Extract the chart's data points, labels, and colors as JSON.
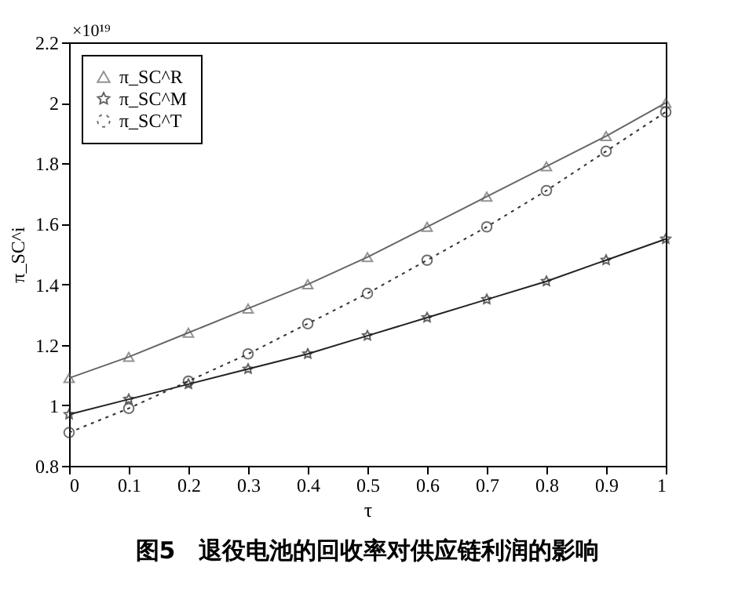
{
  "chart_data": {
    "type": "line",
    "title": "图5　退役电池的回收率对供应链利润的影响",
    "xlabel": "τ",
    "ylabel": "π_SC^i",
    "annotations": [
      "×10¹⁹"
    ],
    "x": [
      0,
      0.1,
      0.2,
      0.3,
      0.4,
      0.5,
      0.6,
      0.7,
      0.8,
      0.9,
      1
    ],
    "series": [
      {
        "name": "π_SC^R",
        "color": "#666666",
        "marker": "triangle",
        "line_style": "solid",
        "values": [
          1.09,
          1.16,
          1.24,
          1.32,
          1.4,
          1.49,
          1.59,
          1.69,
          1.79,
          1.89,
          2.0
        ]
      },
      {
        "name": "π_SC^M",
        "color": "#222222",
        "marker": "star",
        "line_style": "solid",
        "values": [
          0.97,
          1.02,
          1.07,
          1.12,
          1.17,
          1.23,
          1.29,
          1.35,
          1.41,
          1.48,
          1.55
        ]
      },
      {
        "name": "π_SC^T",
        "color": "#333333",
        "marker": "circle",
        "line_style": "dotted",
        "values": [
          0.91,
          0.99,
          1.08,
          1.17,
          1.27,
          1.37,
          1.48,
          1.59,
          1.71,
          1.84,
          1.97
        ]
      }
    ],
    "xlim": [
      0,
      1
    ],
    "xticks": [
      0,
      0.1,
      0.2,
      0.3,
      0.4,
      0.5,
      0.6,
      0.7,
      0.8,
      0.9,
      1
    ],
    "ylim": [
      0.8,
      2.2
    ],
    "yticks": [
      0.8,
      1,
      1.2,
      1.4,
      1.6,
      1.8,
      2,
      2.2
    ],
    "grid": false,
    "legend": "top left"
  }
}
